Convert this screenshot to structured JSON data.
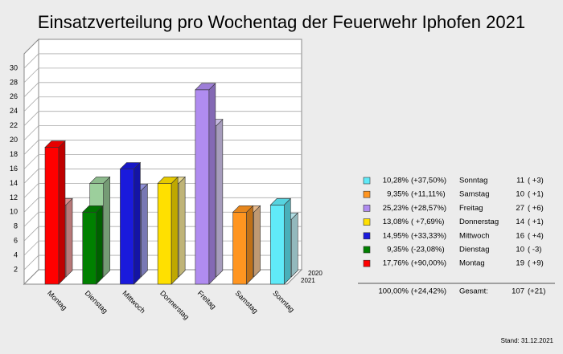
{
  "chart_data": {
    "type": "bar3d",
    "title": "Einsatzverteilung pro Wochentag der Feuerwehr Iphofen 2021",
    "categories": [
      "Montag",
      "Dienstag",
      "Mittwoch",
      "Donnerstag",
      "Freitag",
      "Samstag",
      "Sonntag"
    ],
    "series": [
      {
        "name": "2021",
        "values": [
          19,
          10,
          16,
          14,
          27,
          10,
          11
        ],
        "colors": [
          "#ff0000",
          "#008000",
          "#1a1adc",
          "#ffe000",
          "#b08cf0",
          "#ff9520",
          "#60eaf8"
        ]
      },
      {
        "name": "2020",
        "values": [
          10,
          13,
          12,
          13,
          21,
          9,
          8
        ],
        "colors": [
          "#f4a0a0",
          "#9ccf9c",
          "#a0a0f0",
          "#fff0a0",
          "#ddd0fa",
          "#ffcc99",
          "#c4f6fc"
        ]
      }
    ],
    "ylim": [
      0,
      32
    ],
    "yticks": [
      2,
      4,
      6,
      8,
      10,
      12,
      14,
      16,
      18,
      20,
      22,
      24,
      26,
      28,
      30
    ],
    "grid": true,
    "legend_table": {
      "rows": [
        {
          "share": "10,28%",
          "change": "(+37,50%)",
          "day": "Sonntag",
          "count": "11",
          "diff": "( +3)",
          "color": "#60eaf8",
          "trend": "up"
        },
        {
          "share": "9,35%",
          "change": "(+11,11%)",
          "day": "Samstag",
          "count": "10",
          "diff": "( +1)",
          "color": "#ff9520",
          "trend": "up"
        },
        {
          "share": "25,23%",
          "change": "(+28,57%)",
          "day": "Freitag",
          "count": "27",
          "diff": "( +6)",
          "color": "#b08cf0",
          "trend": "up"
        },
        {
          "share": "13,08%",
          "change": "( +7,69%)",
          "day": "Donnerstag",
          "count": "14",
          "diff": "( +1)",
          "color": "#ffe000",
          "trend": "up"
        },
        {
          "share": "14,95%",
          "change": "(+33,33%)",
          "day": "Mittwoch",
          "count": "16",
          "diff": "( +4)",
          "color": "#1a1adc",
          "trend": "up"
        },
        {
          "share": "9,35%",
          "change": "(-23,08%)",
          "day": "Dienstag",
          "count": "10",
          "diff": "( -3)",
          "color": "#008000",
          "trend": "down"
        },
        {
          "share": "17,76%",
          "change": "(+90,00%)",
          "day": "Montag",
          "count": "19",
          "diff": "( +9)",
          "color": "#ff0000",
          "trend": "up"
        }
      ],
      "total": {
        "share": "100,00%",
        "change": "(+24,42%)",
        "day": "Gesamt:",
        "count": "107",
        "diff": "(+21)",
        "trend": "up"
      }
    },
    "footnote": "Stand: 31.12.2021"
  }
}
